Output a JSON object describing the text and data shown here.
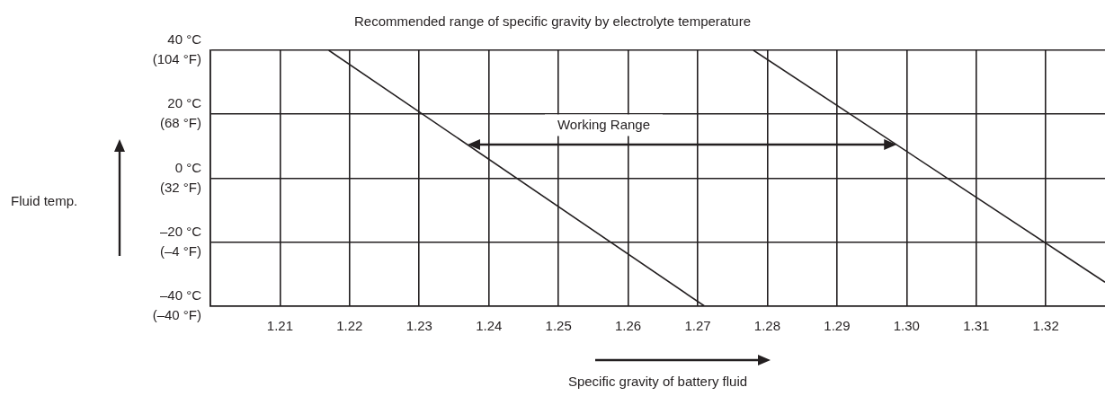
{
  "chart_data": {
    "type": "line",
    "title": "Recommended range of specific gravity by electrolyte temperature",
    "xlabel": "Specific gravity of battery fluid",
    "xlim": [
      1.2,
      1.3285
    ],
    "ylim": [
      -40,
      40
    ],
    "xticks": [
      {
        "value": 1.2,
        "label": null
      },
      1.21,
      1.22,
      1.23,
      1.24,
      1.25,
      1.26,
      1.27,
      1.28,
      1.29,
      {
        "value": 1.3,
        "label": "1.30"
      },
      1.31,
      1.32
    ],
    "yticks": [
      {
        "value": -40,
        "label": "–40 °C"
      },
      {
        "value": -20,
        "label": "–20 °C"
      },
      {
        "value": 0,
        "label": "0 °C"
      },
      {
        "value": 20,
        "label": "20 °C"
      },
      {
        "value": 40,
        "label": "40 °C"
      }
    ],
    "y2lim": [
      -40,
      104
    ],
    "y2ticks": [
      {
        "value": -40,
        "label": "(–40 °F)"
      },
      {
        "value": -4,
        "label": "(–4 °F)"
      },
      {
        "value": 32,
        "label": "(32 °F)"
      },
      {
        "value": 68,
        "label": "(68 °F)"
      },
      {
        "value": 104,
        "label": "(104 °F)"
      }
    ],
    "grid": true,
    "series": [
      {
        "color": "#231f20",
        "x": [
          1.217,
          1.271
        ],
        "values": [
          40,
          -40
        ]
      },
      {
        "color": "#231f20",
        "x": [
          1.278,
          1.3285
        ],
        "values": [
          40,
          -32.5
        ]
      }
    ],
    "annotations": [
      "Working Range",
      "Fluid temp."
    ]
  }
}
